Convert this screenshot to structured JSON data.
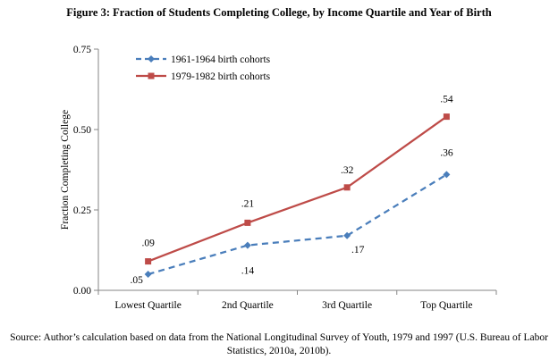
{
  "title": "Figure 3: Fraction of Students Completing College, by Income Quartile and Year of Birth",
  "source": {
    "line1": "Source: Author’s calculation based on data from the National Longitudinal Survey of Youth, 1979 and 1997 (U.S. Bureau of Labor",
    "line2": "Statistics, 2010a, 2010b)."
  },
  "chart_data": {
    "type": "line",
    "title": "Figure 3: Fraction of Students Completing College, by Income Quartile and Year of Birth",
    "xlabel": "",
    "ylabel": "Fraction Completing College",
    "categories": [
      "Lowest Quartile",
      "2nd Quartile",
      "3rd Quartile",
      "Top Quartile"
    ],
    "ylim": [
      0,
      0.75
    ],
    "yticks": [
      0,
      0.25,
      0.5,
      0.75
    ],
    "ytick_labels": [
      "0.00",
      "0.25",
      "0.50",
      "0.75"
    ],
    "grid": false,
    "legend_position": "top-left",
    "series": [
      {
        "name": "1961-1964 birth cohorts",
        "values": [
          0.05,
          0.14,
          0.17,
          0.36
        ],
        "labels": [
          ".05",
          ".14",
          ".17",
          ".36"
        ],
        "color": "#4a7ebb",
        "marker": "diamond",
        "dash": "dashed"
      },
      {
        "name": "1979-1982 birth cohorts",
        "values": [
          0.09,
          0.21,
          0.32,
          0.54
        ],
        "labels": [
          ".09",
          ".21",
          ".32",
          ".54"
        ],
        "color": "#be4b48",
        "marker": "square",
        "dash": "solid"
      }
    ]
  }
}
